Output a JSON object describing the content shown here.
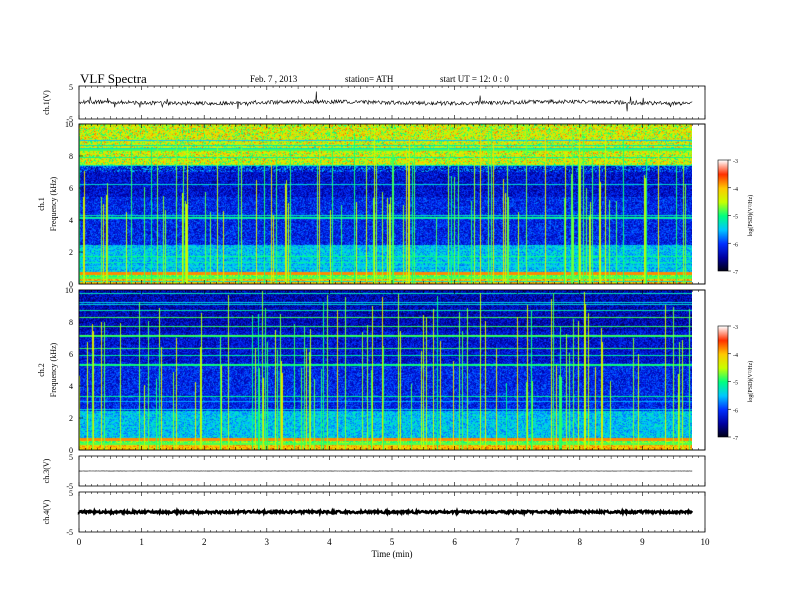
{
  "header": {
    "title": "VLF  Spectra",
    "date": "Feb. 7  , 2013",
    "station": "station= ATH",
    "start": "start  UT  =    12: 0  : 0"
  },
  "chart_data": [
    {
      "type": "line",
      "panel": "ch.1(V)",
      "ylabel": "ch.1(V)",
      "ylim": [
        -5,
        5
      ],
      "yticks": [
        "5",
        "-5"
      ],
      "description_values": {
        "baseline_v": 0,
        "noise_amplitude_v": 0.6
      }
    },
    {
      "type": "heatmap",
      "panel": "ch.1 spectrogram",
      "ylabel": [
        "ch.1",
        "Frequency  (kHz)"
      ],
      "ylim": [
        0,
        10
      ],
      "yticks": [
        "0",
        "2",
        "4",
        "6",
        "8",
        "10"
      ],
      "colorbar": {
        "label": "log(PSD)(V²/Hz)",
        "ticks": [
          "-3",
          "-4",
          "-5",
          "-6",
          "-7"
        ],
        "range": [
          -7,
          -3
        ]
      }
    },
    {
      "type": "heatmap",
      "panel": "ch.2 spectrogram",
      "ylabel": [
        "ch.2",
        "Frequency  (kHz)"
      ],
      "ylim": [
        0,
        10
      ],
      "yticks": [
        "0",
        "2",
        "4",
        "6",
        "8",
        "10"
      ],
      "colorbar": {
        "label": "log(PSD)(V²/Hz)",
        "ticks": [
          "-3",
          "-4",
          "-5",
          "-6",
          "-7"
        ],
        "range": [
          -7,
          -3
        ]
      }
    },
    {
      "type": "line",
      "panel": "ch.3(V)",
      "ylabel": "ch.3(V)",
      "ylim": [
        -5,
        5
      ],
      "yticks": [
        "5",
        "-5"
      ],
      "description_values": {
        "baseline_v": 0,
        "noise_amplitude_v": 0.05
      }
    },
    {
      "type": "line",
      "panel": "ch.4(V)",
      "ylabel": "ch.4(V)",
      "ylim": [
        -5,
        5
      ],
      "yticks": [
        "5",
        "-5"
      ],
      "description_values": {
        "baseline_v": 0,
        "noise_amplitude_v": 0.3
      }
    }
  ],
  "x_axis": {
    "label": "Time  (min)",
    "range": [
      0,
      10
    ],
    "data_end": 9.8,
    "ticks": [
      "0",
      "1",
      "2",
      "3",
      "4",
      "5",
      "6",
      "7",
      "8",
      "9",
      "10"
    ]
  },
  "colors": {
    "colormap": [
      "#000010",
      "#0000a0",
      "#0030ff",
      "#00c8ff",
      "#00ff80",
      "#c8ff00",
      "#ffc800",
      "#ff3000",
      "#ffffff"
    ],
    "trace": "#000000"
  }
}
